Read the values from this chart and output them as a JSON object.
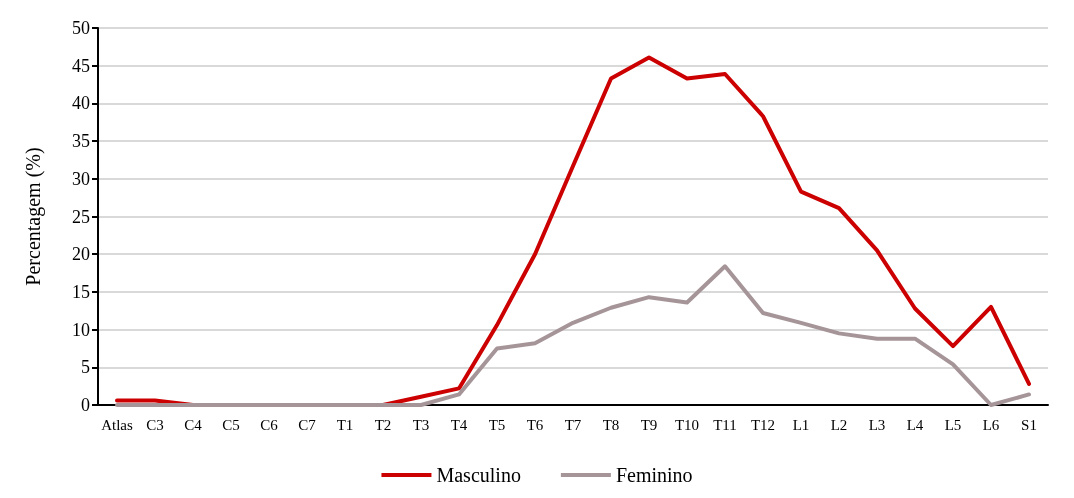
{
  "chart_data": {
    "type": "line",
    "ylabel": "Percentagem (%)",
    "categories": [
      "Atlas",
      "C3",
      "C4",
      "C5",
      "C6",
      "C7",
      "T1",
      "T2",
      "T3",
      "T4",
      "T5",
      "T6",
      "T7",
      "T8",
      "T9",
      "T10",
      "T11",
      "T12",
      "L1",
      "L2",
      "L3",
      "L4",
      "L5",
      "L6",
      "S1"
    ],
    "series": [
      {
        "name": "Masculino",
        "color": "#cc0000",
        "values": [
          0.6,
          0.6,
          0,
          0,
          0,
          0,
          0,
          0,
          1.1,
          2.2,
          10.6,
          20,
          31.7,
          43.3,
          46.1,
          43.3,
          43.9,
          38.3,
          28.3,
          26.1,
          20.5,
          12.8,
          7.8,
          13.0,
          2.8
        ]
      },
      {
        "name": "Feminino",
        "color": "#a69598",
        "values": [
          0,
          0,
          0,
          0,
          0,
          0,
          0,
          0,
          0,
          1.4,
          7.5,
          8.2,
          10.9,
          12.9,
          14.3,
          13.6,
          18.4,
          12.2,
          10.9,
          9.5,
          8.8,
          8.8,
          5.4,
          0,
          1.4
        ]
      }
    ],
    "ylim": [
      0,
      50
    ],
    "yticks": [
      0,
      5,
      10,
      15,
      20,
      25,
      30,
      35,
      40,
      45,
      50
    ],
    "grid": "y",
    "legend": "bottom",
    "marker": "none",
    "line_style": "solid"
  }
}
